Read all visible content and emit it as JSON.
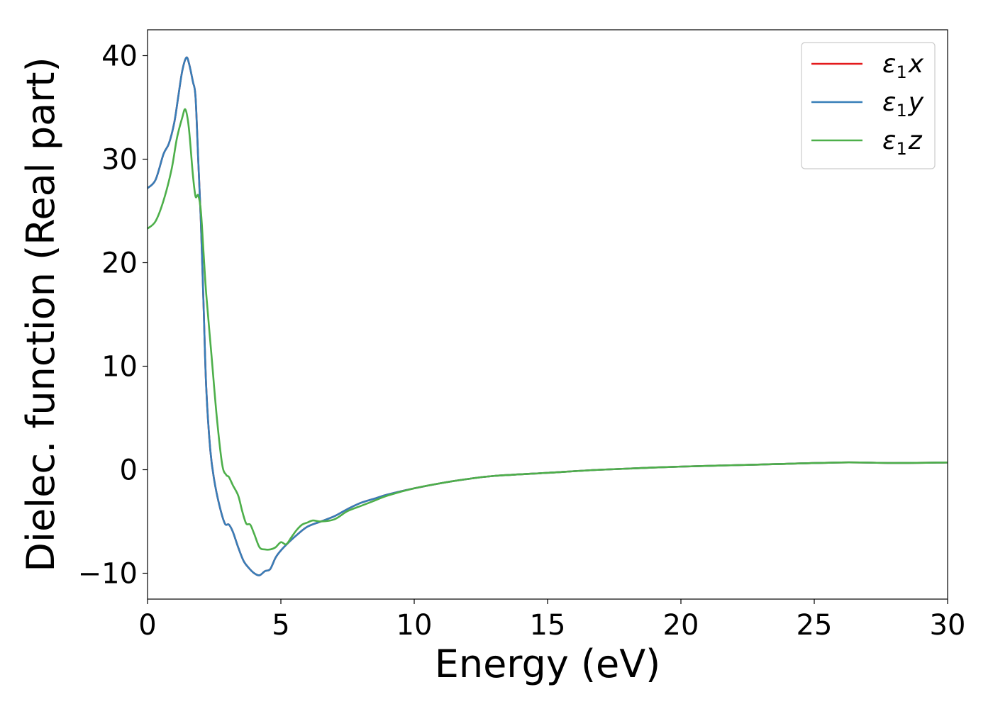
{
  "chart_data": {
    "type": "line",
    "title": "",
    "xlabel": "Energy (eV)",
    "ylabel": "Dielec. function (Real part)",
    "xlim": [
      0,
      30
    ],
    "ylim": [
      -12.5,
      42.5
    ],
    "xticks": [
      0,
      5,
      10,
      15,
      20,
      25,
      30
    ],
    "xtick_labels": [
      "0",
      "5",
      "10",
      "15",
      "20",
      "25",
      "30"
    ],
    "yticks": [
      -10,
      0,
      10,
      20,
      30,
      40
    ],
    "ytick_labels": [
      "−10",
      "0",
      "10",
      "20",
      "30",
      "40"
    ],
    "grid": false,
    "legend_position": "top-right",
    "series": [
      {
        "name": "ε1x",
        "legend_base": "ε",
        "legend_sub": "1",
        "legend_var": "x",
        "color": "#e41a1c",
        "x": [
          0,
          0.3,
          0.6,
          0.8,
          1.0,
          1.15,
          1.3,
          1.45,
          1.55,
          1.7,
          1.8,
          1.9,
          2.0,
          2.1,
          2.2,
          2.35,
          2.5,
          2.7,
          2.9,
          3.05,
          3.2,
          3.4,
          3.6,
          3.8,
          4.0,
          4.2,
          4.4,
          4.6,
          4.8,
          5.0,
          5.3,
          5.6,
          6.0,
          6.5,
          7.0,
          7.5,
          8.0,
          8.5,
          9.0,
          10.0,
          11.0,
          12.0,
          13.0,
          15.0,
          17.0,
          20.0,
          23.0,
          26.0,
          28.0,
          30.0
        ],
        "y": [
          27.2,
          28.0,
          30.5,
          31.5,
          33.5,
          36.0,
          38.5,
          39.8,
          39.3,
          37.5,
          36.0,
          30.0,
          24.0,
          16.0,
          8.0,
          2.0,
          -1.0,
          -3.5,
          -5.2,
          -5.3,
          -6.0,
          -7.5,
          -8.8,
          -9.5,
          -10.0,
          -10.2,
          -9.8,
          -9.6,
          -8.5,
          -7.8,
          -7.0,
          -6.3,
          -5.5,
          -5.0,
          -4.5,
          -3.8,
          -3.2,
          -2.8,
          -2.4,
          -1.8,
          -1.3,
          -0.9,
          -0.6,
          -0.3,
          0.0,
          0.3,
          0.5,
          0.7,
          0.65,
          0.7
        ]
      },
      {
        "name": "ε1y",
        "legend_base": "ε",
        "legend_sub": "1",
        "legend_var": "y",
        "color": "#377eb8",
        "x": [
          0,
          0.3,
          0.6,
          0.8,
          1.0,
          1.15,
          1.3,
          1.45,
          1.55,
          1.7,
          1.8,
          1.9,
          2.0,
          2.1,
          2.2,
          2.35,
          2.5,
          2.7,
          2.9,
          3.05,
          3.2,
          3.4,
          3.6,
          3.8,
          4.0,
          4.2,
          4.4,
          4.6,
          4.8,
          5.0,
          5.3,
          5.6,
          6.0,
          6.5,
          7.0,
          7.5,
          8.0,
          8.5,
          9.0,
          10.0,
          11.0,
          12.0,
          13.0,
          15.0,
          17.0,
          20.0,
          23.0,
          26.0,
          28.0,
          30.0
        ],
        "y": [
          27.2,
          28.0,
          30.5,
          31.5,
          33.5,
          36.0,
          38.5,
          39.8,
          39.3,
          37.5,
          36.0,
          30.0,
          24.0,
          16.0,
          8.0,
          2.0,
          -1.0,
          -3.5,
          -5.2,
          -5.3,
          -6.0,
          -7.5,
          -8.8,
          -9.5,
          -10.0,
          -10.2,
          -9.8,
          -9.6,
          -8.5,
          -7.8,
          -7.0,
          -6.3,
          -5.5,
          -5.0,
          -4.5,
          -3.8,
          -3.2,
          -2.8,
          -2.4,
          -1.8,
          -1.3,
          -0.9,
          -0.6,
          -0.3,
          0.0,
          0.3,
          0.5,
          0.7,
          0.65,
          0.7
        ]
      },
      {
        "name": "ε1z",
        "legend_base": "ε",
        "legend_sub": "1",
        "legend_var": "z",
        "color": "#4daf4a",
        "x": [
          0,
          0.3,
          0.6,
          0.9,
          1.1,
          1.3,
          1.42,
          1.55,
          1.7,
          1.8,
          1.9,
          2.0,
          2.1,
          2.2,
          2.4,
          2.6,
          2.8,
          2.95,
          3.05,
          3.2,
          3.4,
          3.55,
          3.7,
          3.85,
          4.0,
          4.2,
          4.4,
          4.6,
          4.8,
          5.0,
          5.2,
          5.4,
          5.6,
          5.8,
          6.0,
          6.2,
          6.5,
          7.0,
          7.5,
          8.0,
          8.5,
          9.0,
          10.0,
          11.0,
          12.0,
          13.0,
          15.0,
          17.0,
          20.0,
          23.0,
          26.0,
          28.0,
          30.0
        ],
        "y": [
          23.3,
          24.0,
          26.0,
          29.0,
          32.0,
          34.0,
          34.8,
          33.0,
          28.5,
          26.4,
          26.5,
          25.0,
          21.0,
          17.0,
          11.0,
          5.0,
          0.5,
          -0.5,
          -0.7,
          -1.5,
          -2.5,
          -4.0,
          -5.2,
          -5.3,
          -6.2,
          -7.5,
          -7.7,
          -7.7,
          -7.5,
          -7.0,
          -7.2,
          -6.5,
          -5.8,
          -5.3,
          -5.1,
          -4.9,
          -5.0,
          -4.8,
          -4.0,
          -3.5,
          -3.0,
          -2.5,
          -1.8,
          -1.3,
          -0.9,
          -0.6,
          -0.3,
          0.0,
          0.3,
          0.5,
          0.7,
          0.65,
          0.7
        ]
      }
    ]
  }
}
